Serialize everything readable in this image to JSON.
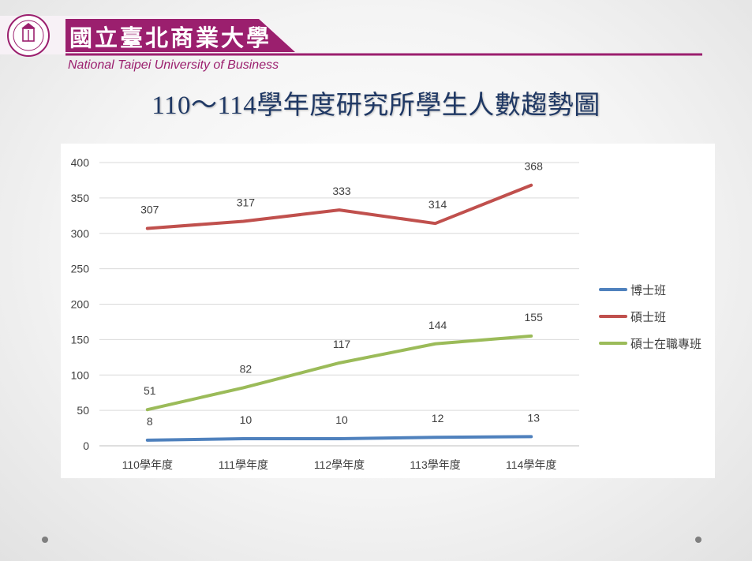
{
  "header": {
    "logo_chinese": "國立臺北商業大學",
    "logo_english": "National Taipei University of Business",
    "colors": {
      "brand_magenta": "#9b1f6e"
    }
  },
  "slide": {
    "title": "110～114學年度研究所學生人數趨勢圖"
  },
  "chart_data": {
    "type": "line",
    "title": "",
    "xlabel": "",
    "ylabel": "",
    "categories": [
      "110學年度",
      "111學年度",
      "112學年度",
      "113學年度",
      "114學年度"
    ],
    "ylim": [
      0,
      400
    ],
    "yticks": [
      0,
      50,
      100,
      150,
      200,
      250,
      300,
      350,
      400
    ],
    "grid": true,
    "legend_position": "right",
    "series": [
      {
        "name": "博士班",
        "values": [
          8,
          10,
          10,
          12,
          13
        ],
        "color": "#4f81bd"
      },
      {
        "name": "碩士班",
        "values": [
          307,
          317,
          333,
          314,
          368
        ],
        "color": "#c0504d"
      },
      {
        "name": "碩士在職專班",
        "values": [
          51,
          82,
          117,
          144,
          155
        ],
        "color": "#9bbb59"
      }
    ]
  }
}
